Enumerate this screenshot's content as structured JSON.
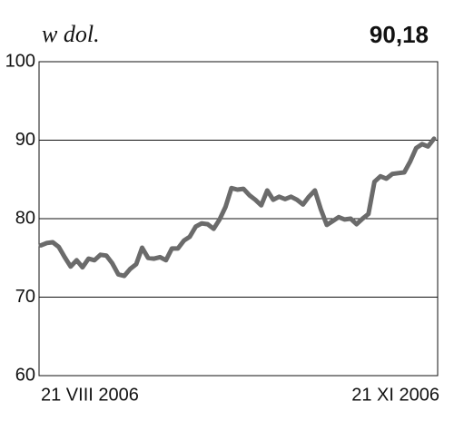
{
  "chart_data": {
    "type": "line",
    "title": "w dol.",
    "categories": [
      "21 VIII 2006",
      null,
      null,
      null,
      null,
      null,
      null,
      null,
      null,
      null,
      null,
      null,
      null,
      null,
      null,
      null,
      null,
      null,
      null,
      null,
      null,
      null,
      null,
      null,
      null,
      null,
      null,
      null,
      null,
      null,
      null,
      null,
      null,
      null,
      null,
      null,
      null,
      null,
      null,
      null,
      null,
      null,
      null,
      null,
      null,
      null,
      null,
      null,
      null,
      null,
      null,
      null,
      null,
      null,
      null,
      null,
      null,
      null,
      null,
      null,
      null,
      null,
      null,
      null,
      null,
      null,
      "21 XI 2006"
    ],
    "values": [
      76.6,
      76.9,
      77.0,
      76.4,
      75.1,
      73.9,
      74.7,
      73.8,
      74.9,
      74.7,
      75.4,
      75.3,
      74.3,
      72.9,
      72.7,
      73.6,
      74.2,
      76.3,
      75.0,
      74.9,
      75.1,
      74.7,
      76.2,
      76.2,
      77.2,
      77.7,
      79.0,
      79.4,
      79.3,
      78.7,
      79.9,
      81.5,
      83.9,
      83.7,
      83.8,
      83.0,
      82.4,
      81.7,
      83.6,
      82.4,
      82.8,
      82.5,
      82.8,
      82.4,
      81.8,
      82.8,
      83.6,
      81.2,
      79.2,
      79.7,
      80.2,
      79.9,
      80.0,
      79.3,
      80.0,
      80.6,
      84.7,
      85.4,
      85.1,
      85.7,
      85.8,
      85.9,
      87.3,
      89.0,
      89.5,
      89.2,
      90.18
    ],
    "value_labels": [
      null,
      null,
      null,
      null,
      null,
      null,
      null,
      null,
      null,
      null,
      null,
      null,
      null,
      null,
      null,
      null,
      null,
      null,
      null,
      null,
      null,
      null,
      null,
      null,
      null,
      null,
      null,
      null,
      null,
      null,
      null,
      null,
      null,
      null,
      null,
      null,
      null,
      null,
      null,
      null,
      null,
      null,
      null,
      null,
      null,
      null,
      null,
      null,
      null,
      null,
      null,
      null,
      null,
      null,
      null,
      null,
      null,
      null,
      null,
      null,
      null,
      null,
      null,
      null,
      null,
      null,
      "90,18"
    ],
    "color": "#6b6b6b",
    "ylim": [
      60,
      100
    ],
    "yticks": [
      60,
      70,
      80,
      90,
      100
    ],
    "grid": true
  }
}
